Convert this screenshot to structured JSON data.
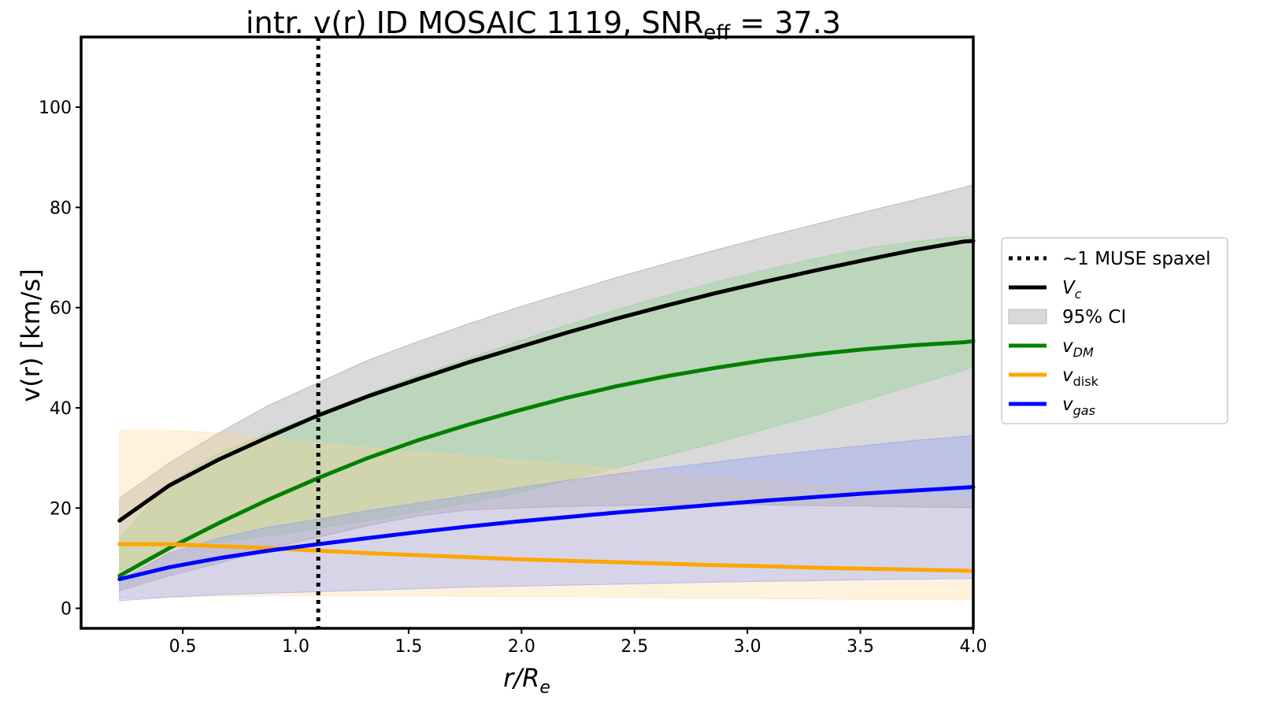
{
  "chart_data": {
    "type": "line",
    "title": {
      "main": "intr. v(r) ID MOSAIC 1119, SNR",
      "sub": "eff",
      "rest": " = 37.3"
    },
    "xlabel": {
      "main": "r/R",
      "sub": "e"
    },
    "ylabel": "v(r) [km/s]",
    "xlim": [
      0.05,
      4.0
    ],
    "ylim": [
      -4,
      114
    ],
    "xticks": [
      {
        "value": 0.5,
        "label": "0.5"
      },
      {
        "value": 1.0,
        "label": "1.0"
      },
      {
        "value": 1.5,
        "label": "1.5"
      },
      {
        "value": 2.0,
        "label": "2.0"
      },
      {
        "value": 2.5,
        "label": "2.5"
      },
      {
        "value": 3.0,
        "label": "3.0"
      },
      {
        "value": 3.5,
        "label": "3.5"
      },
      {
        "value": 4.0,
        "label": "4.0"
      }
    ],
    "yticks": [
      {
        "value": 0,
        "label": "0"
      },
      {
        "value": 20,
        "label": "20"
      },
      {
        "value": 40,
        "label": "40"
      },
      {
        "value": 60,
        "label": "60"
      },
      {
        "value": 80,
        "label": "80"
      },
      {
        "value": 100,
        "label": "100"
      }
    ],
    "grid": false,
    "legend_position": "right, outside plot",
    "vline": {
      "x": 1.1,
      "style": "dotted",
      "color": "#000000"
    },
    "x": [
      0.22,
      0.44,
      0.66,
      0.88,
      1.1,
      1.32,
      1.54,
      1.76,
      1.98,
      2.2,
      2.42,
      2.64,
      2.86,
      3.08,
      3.3,
      3.52,
      3.74,
      3.96,
      4.0
    ],
    "series": [
      {
        "key": "vc",
        "color": "#000000",
        "fill_color": "#808080",
        "values": [
          17.5,
          24.5,
          29.7,
          34.2,
          38.5,
          42.3,
          45.7,
          49.0,
          52.0,
          55.0,
          57.8,
          60.4,
          62.9,
          65.2,
          67.4,
          69.5,
          71.5,
          73.2,
          73.3
        ],
        "ci_upper": [
          22.0,
          29.0,
          35.0,
          40.5,
          45.0,
          49.5,
          53.2,
          56.7,
          60.0,
          63.0,
          66.0,
          68.8,
          71.5,
          74.1,
          76.6,
          79.1,
          81.5,
          84.0,
          84.5
        ],
        "ci_lower": [
          3.5,
          6.5,
          9.0,
          11.8,
          14.2,
          16.5,
          18.4,
          19.6,
          20.0,
          20.3,
          20.5,
          20.6,
          20.7,
          20.6,
          20.5,
          20.4,
          20.2,
          20.1,
          20.0
        ]
      },
      {
        "key": "vdm",
        "color": "#008000",
        "fill_color": "#7ccf7c",
        "values": [
          6.5,
          12.0,
          17.0,
          21.7,
          26.0,
          30.0,
          33.5,
          36.6,
          39.4,
          42.0,
          44.3,
          46.3,
          48.0,
          49.5,
          50.7,
          51.7,
          52.5,
          53.1,
          53.3
        ],
        "ci_upper": [
          14.0,
          25.0,
          31.0,
          35.0,
          38.8,
          42.8,
          46.5,
          49.8,
          53.2,
          56.5,
          59.6,
          62.4,
          65.1,
          67.5,
          69.8,
          71.8,
          73.2,
          74.2,
          74.2
        ],
        "ci_lower": [
          7.5,
          12.0,
          13.2,
          14.5,
          16.0,
          17.5,
          19.2,
          21.0,
          23.0,
          25.5,
          28.0,
          30.5,
          33.0,
          35.8,
          38.5,
          41.5,
          44.5,
          47.5,
          48.2
        ]
      },
      {
        "key": "vdisk",
        "color": "#ffa500",
        "fill_color": "#ffd590",
        "values": [
          12.8,
          12.8,
          12.4,
          12.0,
          11.5,
          11.0,
          10.6,
          10.2,
          9.8,
          9.5,
          9.2,
          8.9,
          8.6,
          8.4,
          8.1,
          7.9,
          7.7,
          7.5,
          7.4
        ],
        "ci_upper": [
          35.5,
          35.5,
          35.0,
          34.0,
          33.0,
          32.0,
          31.2,
          30.4,
          29.5,
          28.7,
          27.8,
          27.0,
          26.2,
          25.3,
          24.5,
          23.7,
          22.8,
          22.0,
          21.8
        ],
        "ci_lower": [
          2.0,
          2.2,
          2.4,
          2.5,
          2.5,
          2.5,
          2.5,
          2.4,
          2.3,
          2.3,
          2.2,
          2.1,
          2.0,
          1.9,
          1.9,
          1.8,
          1.8,
          1.7,
          1.7
        ]
      },
      {
        "key": "vgas",
        "color": "#0000ff",
        "fill_color": "#7b8fff",
        "values": [
          5.8,
          8.2,
          10.0,
          11.5,
          12.8,
          14.0,
          15.2,
          16.3,
          17.3,
          18.2,
          19.1,
          19.9,
          20.7,
          21.5,
          22.2,
          22.9,
          23.5,
          24.1,
          24.2
        ],
        "ci_upper": [
          5.5,
          11.0,
          14.0,
          16.2,
          17.8,
          19.5,
          21.0,
          22.5,
          24.0,
          25.5,
          26.8,
          28.0,
          29.2,
          30.4,
          31.5,
          32.5,
          33.5,
          34.3,
          34.5
        ],
        "ci_lower": [
          1.5,
          2.2,
          2.7,
          3.0,
          3.3,
          3.6,
          3.9,
          4.2,
          4.4,
          4.6,
          4.8,
          5.0,
          5.2,
          5.4,
          5.5,
          5.7,
          5.8,
          5.9,
          6.0
        ]
      }
    ],
    "legend": [
      {
        "kind": "dotted",
        "color": "#000000",
        "label": {
          "main": "~1 MUSE spaxel",
          "sub": "",
          "italic": false
        }
      },
      {
        "kind": "line",
        "color": "#000000",
        "label": {
          "main": "V",
          "sub": "c",
          "italic": true,
          "sub_italic": true
        }
      },
      {
        "kind": "patch",
        "color": "#808080",
        "label": {
          "main": "95% CI",
          "sub": "",
          "italic": false
        }
      },
      {
        "kind": "line",
        "color": "#008000",
        "label": {
          "main": "v",
          "sub": "DM",
          "italic": true,
          "sub_italic": true
        }
      },
      {
        "kind": "line",
        "color": "#ffa500",
        "label": {
          "main": "v",
          "sub": "disk",
          "italic": true,
          "sub_italic": false
        }
      },
      {
        "kind": "line",
        "color": "#0000ff",
        "label": {
          "main": "v",
          "sub": "gas",
          "italic": true,
          "sub_italic": true
        }
      }
    ]
  }
}
